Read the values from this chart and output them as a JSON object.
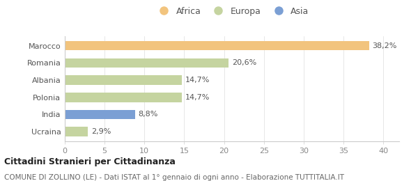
{
  "categories": [
    "Ucraina",
    "India",
    "Polonia",
    "Albania",
    "Romania",
    "Marocco"
  ],
  "values": [
    2.9,
    8.8,
    14.7,
    14.7,
    20.6,
    38.2
  ],
  "labels": [
    "2,9%",
    "8,8%",
    "14,7%",
    "14,7%",
    "20,6%",
    "38,2%"
  ],
  "colors": [
    "#c5d4a0",
    "#7b9fd4",
    "#c5d4a0",
    "#c5d4a0",
    "#c5d4a0",
    "#f2c47e"
  ],
  "legend": [
    {
      "label": "Africa",
      "color": "#f2c47e"
    },
    {
      "label": "Europa",
      "color": "#c5d4a0"
    },
    {
      "label": "Asia",
      "color": "#7b9fd4"
    }
  ],
  "xlim": [
    0,
    42
  ],
  "xticks": [
    0,
    5,
    10,
    15,
    20,
    25,
    30,
    35,
    40
  ],
  "title_bold": "Cittadini Stranieri per Cittadinanza",
  "subtitle": "COMUNE DI ZOLLINO (LE) - Dati ISTAT al 1° gennaio di ogni anno - Elaborazione TUTTITALIA.IT",
  "background_color": "#ffffff",
  "plot_bg_color": "#ffffff",
  "bar_height": 0.55,
  "label_fontsize": 8,
  "tick_label_fontsize": 8,
  "legend_fontsize": 9,
  "title_fontsize": 9,
  "subtitle_fontsize": 7.5
}
